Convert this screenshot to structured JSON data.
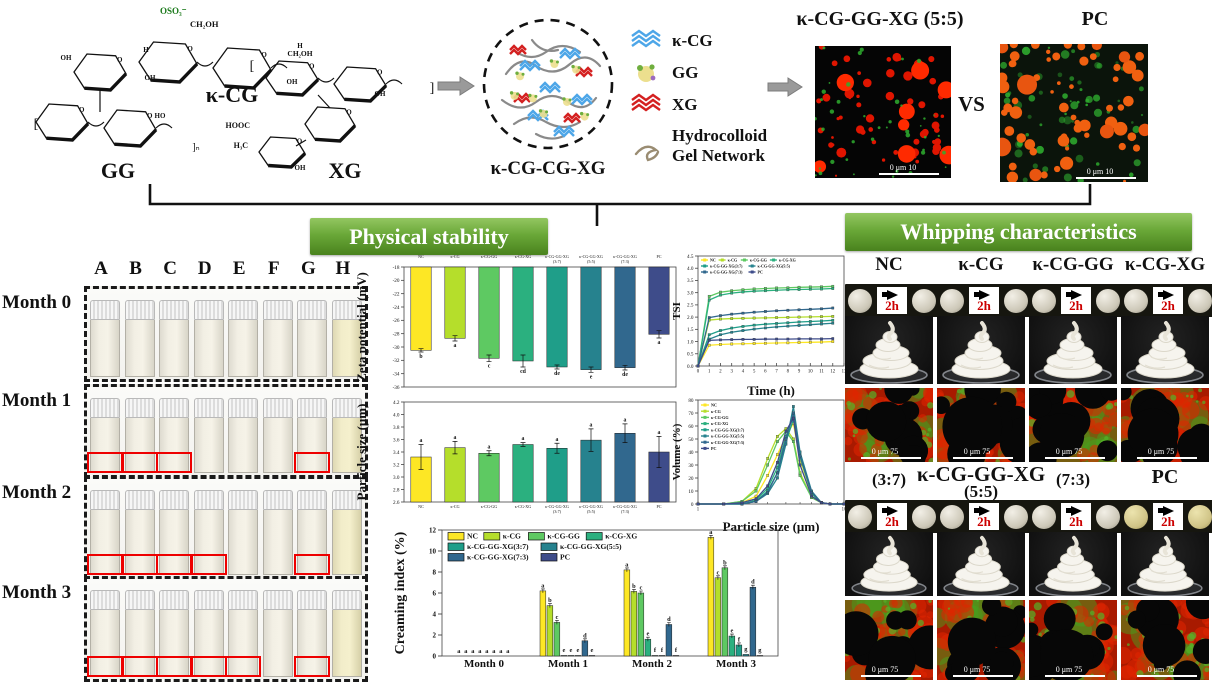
{
  "colors": {
    "palette": [
      "#FDE725",
      "#B5DE2B",
      "#5EC962",
      "#2BB07F",
      "#1F9E89",
      "#26828E",
      "#31688E",
      "#3E4C8A"
    ],
    "banner_green_top": "#93c661",
    "banner_green_bottom": "#49821d",
    "red_annotation": "#ee0000",
    "arrow_gray": "#9a9a9a",
    "micro_red": "#e01500",
    "micro_green": "#2fae2f",
    "micro_orange": "#f06010"
  },
  "top": {
    "structures": [
      {
        "label": "κ-CG",
        "annotations": [
          "OSO₃⁻",
          "CH₂OH",
          "OH",
          "H"
        ]
      },
      {
        "label": "GG",
        "annotations": [
          "OH",
          "HO"
        ]
      },
      {
        "label": "XG",
        "annotations": [
          "HOOC",
          "H₃C",
          "CH₂OH",
          "OH"
        ]
      }
    ],
    "network_label": "κ-CG-CG-XG",
    "legend": [
      {
        "icon": "kcg-zigzag-icon",
        "label": "κ-CG"
      },
      {
        "icon": "gg-cluster-icon",
        "label": "GG"
      },
      {
        "icon": "xg-zigzag-icon",
        "label": "XG"
      },
      {
        "icon": "gel-curl-icon",
        "label": "Hydrocolloid Gel Network",
        "lines": [
          "Hydrocolloid",
          "Gel Network"
        ]
      }
    ],
    "micrographs": [
      {
        "title": "κ-CG-GG-XG (5:5)",
        "scale_bar": "0  μm  10"
      },
      {
        "title": "PC",
        "scale_bar": "0  μm  10"
      }
    ],
    "vs": "VS"
  },
  "stability": {
    "banner": "Physical stability",
    "column_labels": [
      "A",
      "B",
      "C",
      "D",
      "E",
      "F",
      "G",
      "H"
    ],
    "rows": [
      {
        "label": "Month 0",
        "red_boxes": []
      },
      {
        "label": "Month 1",
        "red_boxes": [
          0,
          1,
          2,
          6
        ]
      },
      {
        "label": "Month 2",
        "red_boxes": [
          0,
          1,
          2,
          3,
          6
        ]
      },
      {
        "label": "Month 3",
        "red_boxes": [
          0,
          1,
          2,
          3,
          4,
          6
        ]
      }
    ]
  },
  "whipping": {
    "banner": "Whipping characteristics",
    "arrow_label": "2h",
    "scale_bar": "0  μm  75",
    "group1_titles": [
      "NC",
      "κ-CG",
      "κ-CG-GG",
      "κ-CG-XG"
    ],
    "group2_header": "κ-CG-GG-XG",
    "group2_titles": [
      "(3:7)",
      "(5:5)",
      "(7:3)",
      "PC"
    ]
  },
  "chart_data": [
    {
      "id": "zeta",
      "type": "bar",
      "title": "",
      "ylabel": "Zeta potential (mV)",
      "ylim": [
        -36,
        -18
      ],
      "yticks": [
        -18,
        -20,
        -22,
        -24,
        -26,
        -28,
        -30,
        -32,
        -34,
        -36
      ],
      "categories": [
        "NC",
        "κ-CG",
        "κ-CG-GG",
        "κ-CG-XG",
        "κ-CG-GG-XG|(3:7)",
        "κ-CG-GG-XG|(5:5)",
        "κ-CG-GG-XG|(7:3)",
        "PC"
      ],
      "values": [
        -30.5,
        -28.7,
        -31.7,
        -32.1,
        -33.0,
        -33.4,
        -33.1,
        -28.1
      ],
      "errors": [
        0.25,
        0.4,
        0.5,
        0.9,
        0.3,
        0.4,
        0.35,
        0.55
      ],
      "letters": [
        "b",
        "a",
        "c",
        "cd",
        "de",
        "e",
        "de",
        "a"
      ]
    },
    {
      "id": "particle",
      "type": "bar",
      "title": "",
      "ylabel": "Particle size (μm)",
      "ylim": [
        2.6,
        4.2
      ],
      "yticks": [
        2.6,
        2.8,
        3.0,
        3.2,
        3.4,
        3.6,
        3.8,
        4.0,
        4.2
      ],
      "categories": [
        "NC",
        "κ-CG",
        "κ-CG-GG",
        "κ-CG-XG",
        "κ-CG-GG-XG|(3:7)",
        "κ-CG-GG-XG|(5:5)",
        "κ-CG-GG-XG|(7:3)",
        "PC"
      ],
      "values": [
        3.32,
        3.47,
        3.38,
        3.52,
        3.46,
        3.59,
        3.7,
        3.4
      ],
      "errors": [
        0.2,
        0.1,
        0.04,
        0.03,
        0.08,
        0.18,
        0.15,
        0.25
      ],
      "letters": [
        "a",
        "a",
        "a",
        "a",
        "a",
        "a",
        "a",
        "a"
      ]
    },
    {
      "id": "tsi",
      "type": "line",
      "xlabel": "Time (h)",
      "ylabel": "TSI",
      "xlim": [
        0,
        13
      ],
      "xticks": [
        0,
        1,
        2,
        3,
        4,
        5,
        6,
        7,
        8,
        9,
        10,
        11,
        12,
        13
      ],
      "ylim": [
        0,
        4.5
      ],
      "yticks": [
        0.0,
        0.5,
        1.0,
        1.5,
        2.0,
        2.5,
        3.0,
        3.5,
        4.0,
        4.5
      ],
      "x": [
        0,
        1,
        2,
        3,
        4,
        5,
        6,
        7,
        8,
        9,
        10,
        11,
        12
      ],
      "series": [
        {
          "name": "NC",
          "values": [
            0,
            0.85,
            0.88,
            0.9,
            0.91,
            0.92,
            0.93,
            0.94,
            0.95,
            0.96,
            0.97,
            0.98,
            1.0
          ]
        },
        {
          "name": "κ-CG",
          "values": [
            0,
            1.88,
            1.92,
            1.94,
            1.95,
            1.96,
            1.97,
            1.98,
            1.99,
            2.0,
            2.01,
            2.02,
            2.03
          ]
        },
        {
          "name": "κ-CG-GG",
          "values": [
            0,
            2.85,
            3.02,
            3.08,
            3.12,
            3.15,
            3.17,
            3.19,
            3.2,
            3.22,
            3.23,
            3.24,
            3.26
          ]
        },
        {
          "name": "κ-CG-XG",
          "values": [
            0,
            2.7,
            2.9,
            2.98,
            3.03,
            3.06,
            3.08,
            3.1,
            3.12,
            3.13,
            3.14,
            3.15,
            3.17
          ]
        },
        {
          "name": "κ-CG-GG-XG(3:7)",
          "values": [
            0,
            1.28,
            1.45,
            1.55,
            1.62,
            1.67,
            1.71,
            1.74,
            1.77,
            1.8,
            1.82,
            1.84,
            1.87
          ]
        },
        {
          "name": "κ-CG-GG-XG(5:5)",
          "values": [
            0,
            1.1,
            1.28,
            1.38,
            1.45,
            1.51,
            1.56,
            1.6,
            1.63,
            1.66,
            1.69,
            1.72,
            1.75
          ]
        },
        {
          "name": "κ-CG-GG-XG(7:3)",
          "values": [
            0,
            1.98,
            2.06,
            2.12,
            2.16,
            2.2,
            2.23,
            2.26,
            2.28,
            2.3,
            2.32,
            2.34,
            2.37
          ]
        },
        {
          "name": "PC",
          "values": [
            0,
            1.05,
            1.07,
            1.08,
            1.09,
            1.09,
            1.1,
            1.1,
            1.1,
            1.11,
            1.11,
            1.11,
            1.12
          ]
        }
      ]
    },
    {
      "id": "volume",
      "type": "line",
      "xlabel": "Particle size (μm)",
      "ylabel": "Volume (%)",
      "xscale": "log",
      "xlim": [
        1,
        10
      ],
      "xticks": [
        1,
        10
      ],
      "ylim": [
        0,
        80
      ],
      "yticks": [
        0,
        10,
        20,
        30,
        40,
        50,
        60,
        70,
        80
      ],
      "x": [
        1,
        1.5,
        2,
        2.5,
        3,
        3.5,
        4,
        4.5,
        5,
        6,
        7,
        8,
        10
      ],
      "series": [
        {
          "name": "NC",
          "values": [
            0,
            0,
            1,
            6,
            22,
            38,
            52,
            62,
            34,
            8,
            1,
            0,
            0
          ]
        },
        {
          "name": "κ-CG",
          "values": [
            0,
            0,
            2,
            12,
            35,
            52,
            58,
            50,
            24,
            5,
            1,
            0,
            0
          ]
        },
        {
          "name": "κ-CG-GG",
          "values": [
            0,
            0,
            2,
            10,
            30,
            48,
            56,
            48,
            22,
            5,
            1,
            0,
            0
          ]
        },
        {
          "name": "κ-CG-XG",
          "values": [
            0,
            0,
            0,
            3,
            12,
            28,
            52,
            68,
            36,
            8,
            1,
            0,
            0
          ]
        },
        {
          "name": "κ-CG-GG-XG(3:7)",
          "values": [
            0,
            0,
            0,
            2,
            10,
            24,
            48,
            65,
            38,
            9,
            1,
            0,
            0
          ]
        },
        {
          "name": "κ-CG-GG-XG(5:5)",
          "values": [
            0,
            0,
            0,
            2,
            8,
            20,
            46,
            75,
            40,
            10,
            1,
            0,
            0
          ]
        },
        {
          "name": "κ-CG-GG-XG(7:3)",
          "values": [
            0,
            0,
            0,
            2,
            9,
            24,
            50,
            70,
            37,
            9,
            1,
            0,
            0
          ]
        },
        {
          "name": "PC",
          "values": [
            0,
            0,
            1,
            4,
            14,
            32,
            56,
            66,
            30,
            6,
            1,
            0,
            0
          ]
        }
      ]
    },
    {
      "id": "creaming",
      "type": "grouped-bar",
      "ylabel": "Creaming index (%)",
      "ylim": [
        0,
        12
      ],
      "yticks": [
        0,
        2,
        4,
        6,
        8,
        10,
        12
      ],
      "categories": [
        "Month 0",
        "Month 1",
        "Month 2",
        "Month 3"
      ],
      "series": [
        {
          "name": "NC",
          "values": [
            0,
            6.2,
            8.2,
            11.3
          ],
          "letters": [
            "a",
            "a",
            "a",
            "a"
          ]
        },
        {
          "name": "κ-CG",
          "values": [
            0,
            4.8,
            6.15,
            7.45
          ],
          "letters": [
            "a",
            "b",
            "b",
            "c"
          ]
        },
        {
          "name": "κ-CG-GG",
          "values": [
            0,
            3.2,
            6.0,
            8.4
          ],
          "letters": [
            "a",
            "c",
            "c",
            "b"
          ]
        },
        {
          "name": "κ-CG-XG",
          "values": [
            0,
            0.05,
            1.6,
            1.9
          ],
          "letters": [
            "a",
            "e",
            "e",
            "e"
          ]
        },
        {
          "name": "κ-CG-GG-XG(3:7)",
          "values": [
            0,
            0.05,
            0.05,
            1.05
          ],
          "letters": [
            "a",
            "e",
            "f",
            "f"
          ]
        },
        {
          "name": "κ-CG-GG-XG(5:5)",
          "values": [
            0,
            0.05,
            0.05,
            0.15
          ],
          "letters": [
            "a",
            "e",
            "f",
            "g"
          ]
        },
        {
          "name": "κ-CG-GG-XG(7:3)",
          "values": [
            0,
            1.45,
            3.0,
            6.55
          ],
          "letters": [
            "a",
            "d",
            "d",
            "d"
          ]
        },
        {
          "name": "PC",
          "values": [
            0,
            0.05,
            0.05,
            0.05
          ],
          "letters": [
            "a",
            "e",
            "f",
            "g"
          ]
        }
      ]
    }
  ]
}
